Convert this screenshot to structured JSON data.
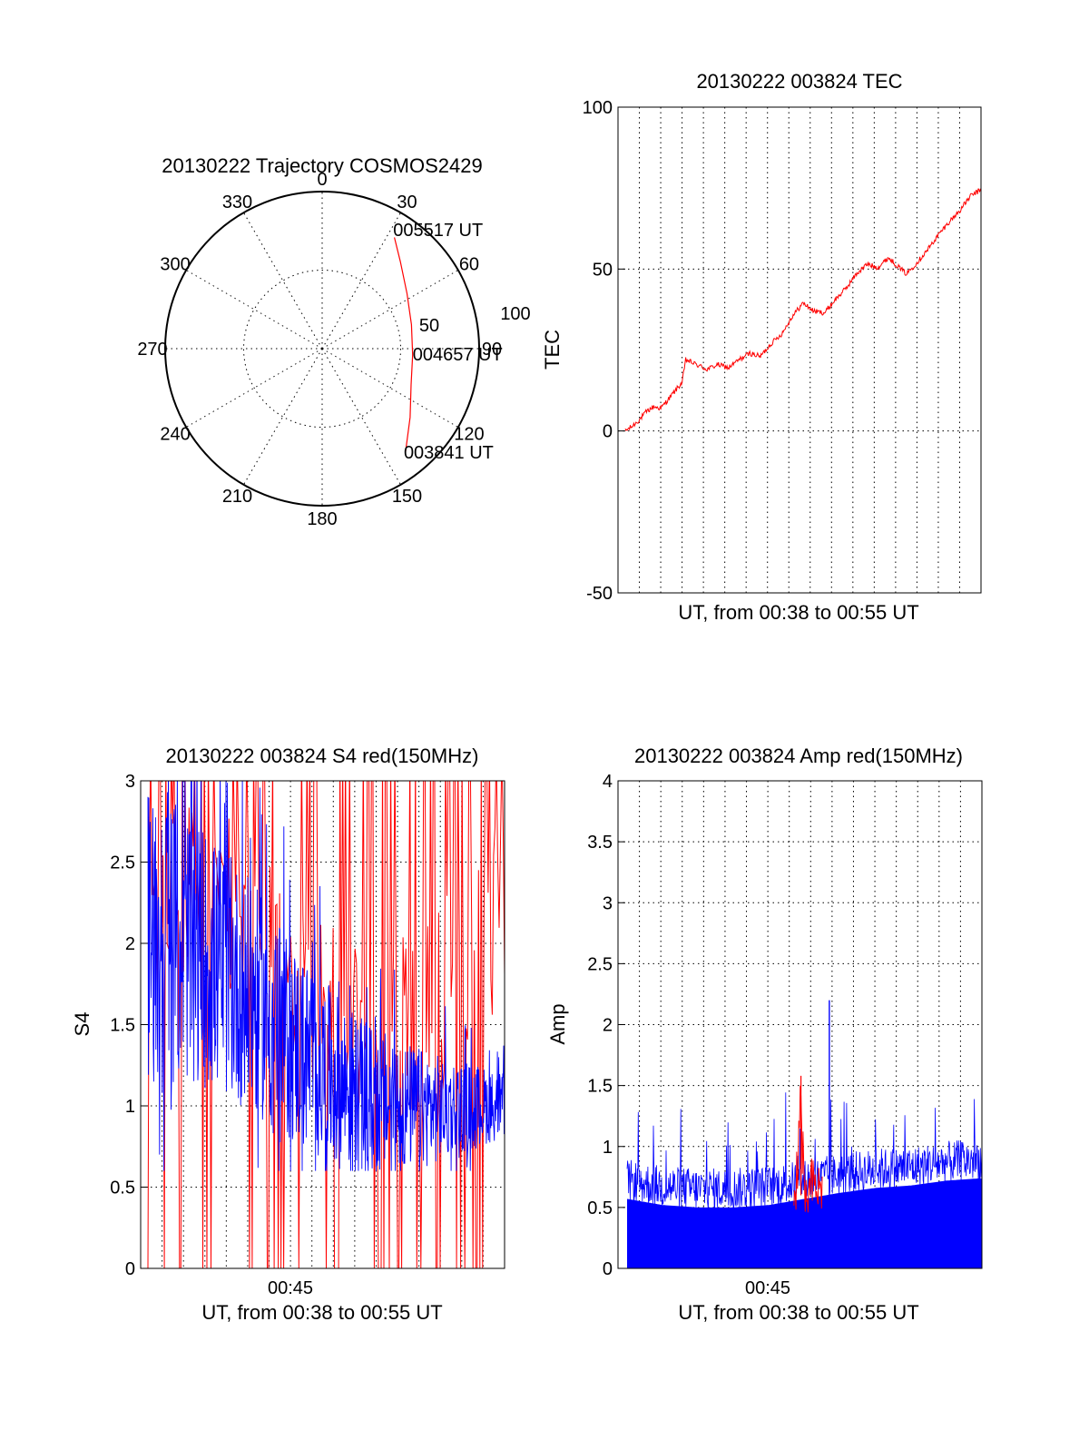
{
  "chart_data": [
    {
      "type": "polar",
      "title": "20130222 Trajectory COSMOS2429",
      "angle_labels": [
        "0",
        "30",
        "60",
        "90",
        "120",
        "150",
        "180",
        "210",
        "240",
        "270",
        "300",
        "330"
      ],
      "radius_labels": [
        "50",
        "100"
      ],
      "grid": true,
      "series": [
        {
          "color": "#ff0000",
          "points": [
            {
              "az": 141,
              "el": 14
            },
            {
              "az": 128,
              "el": 26
            },
            {
              "az": 112,
              "el": 35
            },
            {
              "az": 94,
              "el": 38
            },
            {
              "az": 75,
              "el": 37
            },
            {
              "az": 57,
              "el": 32
            },
            {
              "az": 42,
              "el": 23
            },
            {
              "az": 33,
              "el": 14
            }
          ]
        }
      ],
      "annotations": [
        {
          "text": "005517 UT",
          "az": 31,
          "el": 11
        },
        {
          "text": "004657 UT",
          "az": 94,
          "el": 38
        },
        {
          "text": "003841 UT",
          "az": 142,
          "el": 14
        }
      ]
    },
    {
      "type": "line",
      "title": "20130222 003824 TEC",
      "xlabel": "UT, from 00:38 to 00:55 UT",
      "ylabel": "TEC",
      "xlim": [
        0,
        1
      ],
      "ylim": [
        -50,
        100
      ],
      "yticks": [
        "-50",
        "0",
        "50",
        "100"
      ],
      "grid": true,
      "series": [
        {
          "color": "#ff0000",
          "x": [
            0,
            0.02,
            0.04,
            0.06,
            0.08,
            0.1,
            0.13,
            0.16,
            0.17,
            0.2,
            0.23,
            0.26,
            0.29,
            0.32,
            0.35,
            0.38,
            0.41,
            0.44,
            0.47,
            0.5,
            0.53,
            0.56,
            0.59,
            0.62,
            0.65,
            0.68,
            0.71,
            0.74,
            0.76,
            0.79,
            0.82,
            0.85,
            0.88,
            0.91,
            0.94,
            0.97,
            1.0
          ],
          "values": [
            0,
            1.5,
            3.5,
            6,
            7.5,
            7,
            11,
            15,
            22,
            20.5,
            19,
            20.5,
            19.5,
            22,
            24,
            23,
            27,
            30,
            35.5,
            39.5,
            37,
            36.5,
            40.5,
            44,
            48.5,
            51.5,
            50.5,
            53.5,
            51.5,
            48.5,
            52,
            56,
            60.5,
            64.5,
            68,
            72.5,
            74.5
          ]
        }
      ]
    },
    {
      "type": "line",
      "title": "20130222 003824 S4 red(150MHz)",
      "xlabel": "UT, from 00:38 to 00:55 UT",
      "ylabel": "S4",
      "xticks": [
        "00:45"
      ],
      "ylim": [
        0,
        3
      ],
      "yticks": [
        "0",
        "0.5",
        "1",
        "1.5",
        "2",
        "2.5",
        "3"
      ],
      "grid": true,
      "series": [
        {
          "color": "#0000ff",
          "x": [
            0,
            0.1,
            0.2,
            0.3,
            0.4,
            0.5,
            0.6,
            0.7,
            0.8,
            0.9,
            1.0
          ],
          "values": [
            2.05,
            2.0,
            1.85,
            1.65,
            1.4,
            1.2,
            1.05,
            1.0,
            0.98,
            1.0,
            1.0
          ]
        },
        {
          "color": "#ff0000",
          "x": [
            0,
            0.1,
            0.2,
            0.3,
            0.4,
            0.5,
            0.6,
            0.7,
            0.8,
            0.9,
            1.0
          ],
          "values": [
            2.2,
            2.3,
            2.2,
            2.1,
            1.8,
            1.6,
            1.5,
            1.5,
            1.6,
            1.9,
            2.2
          ]
        }
      ]
    },
    {
      "type": "area",
      "title": "20130222 003824 Amp red(150MHz)",
      "xlabel": "UT, from 00:38 to 00:55 UT",
      "ylabel": "Amp",
      "xticks": [
        "00:45"
      ],
      "ylim": [
        0,
        4
      ],
      "yticks": [
        "0",
        "0.5",
        "1",
        "1.5",
        "2",
        "2.5",
        "3",
        "3.5",
        "4"
      ],
      "grid": true,
      "series": [
        {
          "color": "#0000ff",
          "x": [
            0,
            0.1,
            0.2,
            0.3,
            0.4,
            0.5,
            0.6,
            0.7,
            0.8,
            0.9,
            1.0
          ],
          "values": [
            0.65,
            0.6,
            0.58,
            0.58,
            0.6,
            0.65,
            0.7,
            0.74,
            0.76,
            0.8,
            0.82
          ]
        },
        {
          "color": "#ff0000",
          "x": [
            0.47,
            0.49,
            0.5,
            0.52,
            0.55
          ],
          "values": [
            0.55,
            1.58,
            0.6,
            0.8,
            0.75
          ]
        }
      ]
    }
  ]
}
